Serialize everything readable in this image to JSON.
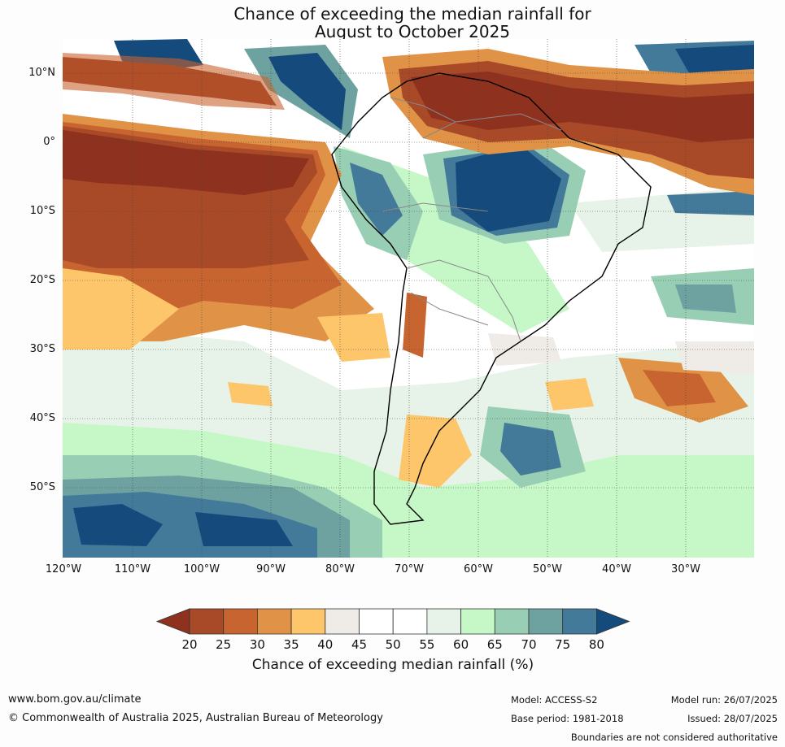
{
  "title": {
    "line1": "Chance of exceeding the median rainfall for",
    "line2": "August to October 2025"
  },
  "latitude_labels": [
    "10°N",
    "0°",
    "10°S",
    "20°S",
    "30°S",
    "40°S",
    "50°S"
  ],
  "longitude_labels": [
    "120°W",
    "110°W",
    "100°W",
    "90°W",
    "80°W",
    "70°W",
    "60°W",
    "50°W",
    "40°W",
    "30°W"
  ],
  "colorbar": {
    "title": "Chance of exceeding median rainfall (%)",
    "ticks": [
      "20",
      "25",
      "30",
      "35",
      "40",
      "45",
      "50",
      "55",
      "60",
      "65",
      "70",
      "75",
      "80"
    ],
    "colors": [
      "#8e321f",
      "#a84928",
      "#c8642f",
      "#e09347",
      "#fdc66b",
      "#efece8",
      "#ffffff",
      "#ffffff",
      "#e7f3e8",
      "#c6f8c7",
      "#98cfb4",
      "#6da2a0",
      "#437a9a",
      "#154a7d"
    ]
  },
  "footer": {
    "url": "www.bom.gov.au/climate",
    "copyright": "© Commonwealth of Australia 2025, Australian Bureau of Meteorology",
    "model": "Model: ACCESS-S2",
    "base_period": "Base period: 1981-2018",
    "model_run": "Model run: 26/07/2025",
    "issued": "Issued: 28/07/2025",
    "disclaimer": "Boundaries are not considered authoritative"
  }
}
